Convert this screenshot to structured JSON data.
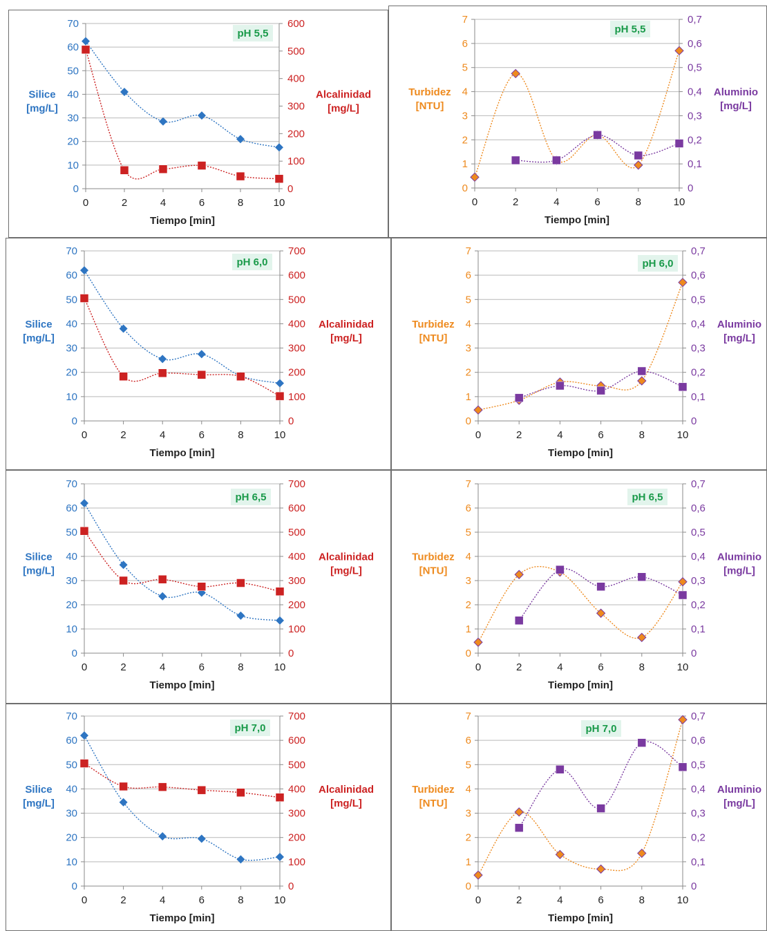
{
  "colors": {
    "silice": "#2e75c2",
    "alcalinidad": "#cc2222",
    "turbidez": "#ee8a1e",
    "aluminio": "#7a3aa0",
    "ph_badge_bg": "#e2f4ec",
    "ph_badge_text": "#1a9a4a",
    "grid": "#b9b9b9",
    "axis_text": "#555555"
  },
  "chart_data": [
    {
      "type": "scatter",
      "title": "pH 5,5",
      "xlabel": "Tiempo [min]",
      "x": [
        0,
        2,
        4,
        6,
        8,
        10
      ],
      "y_left": {
        "label": [
          "Silice",
          "[mg/L]"
        ],
        "range": [
          0,
          70
        ],
        "ticks": [
          "0",
          "10",
          "20",
          "30",
          "40",
          "50",
          "60",
          "70"
        ]
      },
      "y_right": {
        "label": [
          "Alcalinidad",
          "[mg/L]"
        ],
        "range": [
          0,
          600
        ],
        "ticks": [
          "0",
          "100",
          "200",
          "300",
          "400",
          "500",
          "600"
        ]
      },
      "series": [
        {
          "name": "Silice",
          "axis": "left",
          "marker": "diamond",
          "color": "#2e75c2",
          "values": [
            62.5,
            41,
            28.5,
            31,
            21,
            17.5
          ]
        },
        {
          "name": "Alcalinidad",
          "axis": "right",
          "marker": "square",
          "color": "#cc2222",
          "values": [
            505,
            67,
            71,
            84,
            45,
            36
          ]
        }
      ]
    },
    {
      "type": "scatter",
      "title": "pH 5,5",
      "xlabel": "Tiempo [min]",
      "x": [
        0,
        2,
        4,
        6,
        8,
        10
      ],
      "y_left": {
        "label": [
          "Turbidez",
          "[NTU]"
        ],
        "range": [
          0,
          7
        ],
        "ticks": [
          "0",
          "1",
          "2",
          "3",
          "4",
          "5",
          "6",
          "7"
        ]
      },
      "y_right": {
        "label": [
          "Aluminio",
          "[mg/L]"
        ],
        "range": [
          0,
          0.7
        ],
        "ticks": [
          "0",
          "0,1",
          "0,2",
          "0,3",
          "0,4",
          "0,5",
          "0,6",
          "0,7"
        ]
      },
      "series": [
        {
          "name": "Turbidez",
          "axis": "left",
          "marker": "diamond",
          "color": "#ee8a1e",
          "values": [
            0.45,
            4.75,
            1.15,
            2.2,
            0.95,
            5.7
          ]
        },
        {
          "name": "Aluminio",
          "axis": "right",
          "marker": "square",
          "color": "#7a3aa0",
          "values": [
            null,
            0.115,
            0.115,
            0.22,
            0.135,
            0.185
          ]
        }
      ]
    },
    {
      "type": "scatter",
      "title": "pH 6,0",
      "xlabel": "Tiempo [min]",
      "x": [
        0,
        2,
        4,
        6,
        8,
        10
      ],
      "y_left": {
        "label": [
          "Silice",
          "[mg/L]"
        ],
        "range": [
          0,
          70
        ],
        "ticks": [
          "0",
          "10",
          "20",
          "30",
          "40",
          "50",
          "60",
          "70"
        ]
      },
      "y_right": {
        "label": [
          "Alcalinidad",
          "[mg/L]"
        ],
        "range": [
          0,
          700
        ],
        "ticks": [
          "0",
          "100",
          "200",
          "300",
          "400",
          "500",
          "600",
          "700"
        ]
      },
      "series": [
        {
          "name": "Silice",
          "axis": "left",
          "marker": "diamond",
          "color": "#2e75c2",
          "values": [
            62,
            38,
            25.5,
            27.5,
            18.5,
            15.5
          ]
        },
        {
          "name": "Alcalinidad",
          "axis": "right",
          "marker": "square",
          "color": "#cc2222",
          "values": [
            505,
            183,
            197,
            190,
            183,
            102
          ]
        }
      ]
    },
    {
      "type": "scatter",
      "title": "pH 6,0",
      "xlabel": "Tiempo [min]",
      "x": [
        0,
        2,
        4,
        6,
        8,
        10
      ],
      "y_left": {
        "label": [
          "Turbidez",
          "[NTU]"
        ],
        "range": [
          0,
          7
        ],
        "ticks": [
          "0",
          "1",
          "2",
          "3",
          "4",
          "5",
          "6",
          "7"
        ]
      },
      "y_right": {
        "label": [
          "Aluminio",
          "[mg/L]"
        ],
        "range": [
          0,
          0.7
        ],
        "ticks": [
          "0",
          "0,1",
          "0,2",
          "0,3",
          "0,4",
          "0,5",
          "0,6",
          "0,7"
        ]
      },
      "series": [
        {
          "name": "Turbidez",
          "axis": "left",
          "marker": "diamond",
          "color": "#ee8a1e",
          "values": [
            0.45,
            0.85,
            1.6,
            1.45,
            1.65,
            5.7
          ]
        },
        {
          "name": "Aluminio",
          "axis": "right",
          "marker": "square",
          "color": "#7a3aa0",
          "values": [
            null,
            0.095,
            0.145,
            0.125,
            0.205,
            0.14
          ]
        }
      ]
    },
    {
      "type": "scatter",
      "title": "pH 6,5",
      "xlabel": "Tiempo [min]",
      "x": [
        0,
        2,
        4,
        6,
        8,
        10
      ],
      "y_left": {
        "label": [
          "Silice",
          "[mg/L]"
        ],
        "range": [
          0,
          70
        ],
        "ticks": [
          "0",
          "10",
          "20",
          "30",
          "40",
          "50",
          "60",
          "70"
        ]
      },
      "y_right": {
        "label": [
          "Alcalinidad",
          "[mg/L]"
        ],
        "range": [
          0,
          700
        ],
        "ticks": [
          "0",
          "100",
          "200",
          "300",
          "400",
          "500",
          "600",
          "700"
        ]
      },
      "series": [
        {
          "name": "Silice",
          "axis": "left",
          "marker": "diamond",
          "color": "#2e75c2",
          "values": [
            62,
            36.5,
            23.5,
            25,
            15.5,
            13.5
          ]
        },
        {
          "name": "Alcalinidad",
          "axis": "right",
          "marker": "square",
          "color": "#cc2222",
          "values": [
            505,
            300,
            305,
            275,
            290,
            255
          ]
        }
      ]
    },
    {
      "type": "scatter",
      "title": "pH 6,5",
      "xlabel": "Tiempo [min]",
      "x": [
        0,
        2,
        4,
        6,
        8,
        10
      ],
      "y_left": {
        "label": [
          "Turbidez",
          "[NTU]"
        ],
        "range": [
          0,
          7
        ],
        "ticks": [
          "0",
          "1",
          "2",
          "3",
          "4",
          "5",
          "6",
          "7"
        ]
      },
      "y_right": {
        "label": [
          "Aluminio",
          "[mg/L]"
        ],
        "range": [
          0,
          0.7
        ],
        "ticks": [
          "0",
          "0,1",
          "0,2",
          "0,3",
          "0,4",
          "0,5",
          "0,6",
          "0,7"
        ]
      },
      "series": [
        {
          "name": "Turbidez",
          "axis": "left",
          "marker": "diamond",
          "color": "#ee8a1e",
          "values": [
            0.45,
            3.25,
            3.35,
            1.65,
            0.65,
            2.95
          ]
        },
        {
          "name": "Aluminio",
          "axis": "right",
          "marker": "square",
          "color": "#7a3aa0",
          "values": [
            null,
            0.135,
            0.345,
            0.275,
            0.315,
            0.24
          ]
        }
      ]
    },
    {
      "type": "scatter",
      "title": "pH 7,0",
      "xlabel": "Tiempo [min]",
      "x": [
        0,
        2,
        4,
        6,
        8,
        10
      ],
      "y_left": {
        "label": [
          "Silice",
          "[mg/L]"
        ],
        "range": [
          0,
          70
        ],
        "ticks": [
          "0",
          "10",
          "20",
          "30",
          "40",
          "50",
          "60",
          "70"
        ]
      },
      "y_right": {
        "label": [
          "Alcalinidad",
          "[mg/L]"
        ],
        "range": [
          0,
          700
        ],
        "ticks": [
          "0",
          "100",
          "200",
          "300",
          "400",
          "500",
          "600",
          "700"
        ]
      },
      "series": [
        {
          "name": "Silice",
          "axis": "left",
          "marker": "diamond",
          "color": "#2e75c2",
          "values": [
            62,
            34.5,
            20.5,
            19.5,
            11,
            12
          ]
        },
        {
          "name": "Alcalinidad",
          "axis": "right",
          "marker": "square",
          "color": "#cc2222",
          "values": [
            505,
            410,
            408,
            395,
            385,
            365
          ]
        }
      ]
    },
    {
      "type": "scatter",
      "title": "pH 7,0",
      "xlabel": "Tiempo [min]",
      "x": [
        0,
        2,
        4,
        6,
        8,
        10
      ],
      "y_left": {
        "label": [
          "Turbidez",
          "[NTU]"
        ],
        "range": [
          0,
          7
        ],
        "ticks": [
          "0",
          "1",
          "2",
          "3",
          "4",
          "5",
          "6",
          "7"
        ]
      },
      "y_right": {
        "label": [
          "Aluminio",
          "[mg/L]"
        ],
        "range": [
          0,
          0.7
        ],
        "ticks": [
          "0",
          "0,1",
          "0,2",
          "0,3",
          "0,4",
          "0,5",
          "0,6",
          "0,7"
        ]
      },
      "series": [
        {
          "name": "Turbidez",
          "axis": "left",
          "marker": "diamond",
          "color": "#ee8a1e",
          "values": [
            0.45,
            3.05,
            1.3,
            0.7,
            1.35,
            6.85
          ]
        },
        {
          "name": "Aluminio",
          "axis": "right",
          "marker": "square",
          "color": "#7a3aa0",
          "values": [
            null,
            0.24,
            0.48,
            0.32,
            0.59,
            0.49
          ]
        }
      ]
    }
  ]
}
